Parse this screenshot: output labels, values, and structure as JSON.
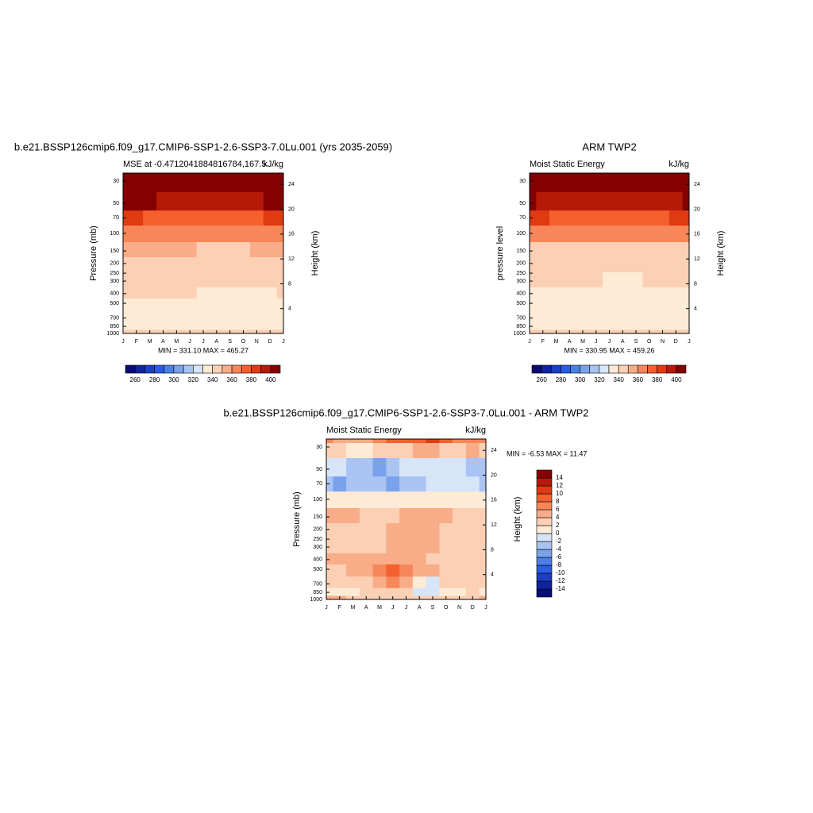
{
  "chart_data": [
    {
      "type": "contour",
      "title": "b.e21.BSSP126cmip6.f09_g17.CMIP6-SSP1-2.6-SSP3-7.0Lu.001 (yrs 2035-2059)",
      "subtitle_left": "MSE at -0.4712041884816784,167.5",
      "subtitle_right": "kJ/kg",
      "y_label": "Pressure (mb)",
      "y2_label": "Height (km)",
      "stats": "MIN = 331.10 MAX = 465.27",
      "categories": [
        "J",
        "F",
        "M",
        "A",
        "M",
        "J",
        "J",
        "A",
        "S",
        "O",
        "N",
        "D",
        "J"
      ],
      "y": [
        25,
        30,
        50,
        70,
        100,
        150,
        200,
        300,
        400,
        500,
        700,
        850,
        1000
      ],
      "values": [
        [
          462,
          462,
          463,
          464,
          465,
          465,
          465,
          465,
          464,
          463,
          462,
          462,
          462
        ],
        [
          440,
          440,
          440,
          440,
          441,
          441,
          441,
          441,
          440,
          440,
          440,
          440,
          440
        ],
        [
          402,
          401,
          400,
          398,
          396,
          395,
          395,
          395,
          396,
          397,
          399,
          401,
          402
        ],
        [
          380,
          380,
          379,
          378,
          377,
          376,
          376,
          376,
          377,
          378,
          379,
          380,
          380
        ],
        [
          362,
          362,
          362,
          361,
          361,
          361,
          361,
          361,
          361,
          361,
          362,
          362,
          362
        ],
        [
          352,
          352,
          351,
          351,
          350,
          350,
          349,
          349,
          349,
          349,
          350,
          351,
          352
        ],
        [
          345,
          345,
          345,
          345,
          345,
          345,
          345,
          345,
          345,
          345,
          345,
          345,
          345
        ],
        [
          343,
          343,
          343,
          343,
          343,
          343,
          343,
          343,
          342,
          342,
          342,
          343,
          343
        ],
        [
          342,
          342,
          342,
          341,
          341,
          341,
          339,
          338,
          338,
          338,
          338,
          339,
          341
        ],
        [
          338,
          338,
          338,
          338,
          338,
          338,
          337,
          336,
          336,
          336,
          336,
          337,
          338
        ],
        [
          336,
          336,
          336,
          336,
          335,
          335,
          336,
          336,
          336,
          336,
          336,
          336,
          336
        ],
        [
          333,
          333,
          333,
          333,
          333,
          333,
          333,
          333,
          333,
          333,
          333,
          333,
          333
        ],
        [
          341,
          341,
          341,
          341,
          341,
          341,
          341,
          341,
          341,
          341,
          341,
          341,
          341
        ]
      ],
      "ylim": [
        1000,
        25
      ],
      "log_y": true,
      "yticks": [
        30,
        50,
        70,
        100,
        150,
        200,
        250,
        300,
        400,
        500,
        700,
        850,
        1000
      ],
      "y2ticks": [
        4,
        8,
        12,
        16,
        20,
        24
      ],
      "contour_levels": [
        260,
        270,
        280,
        290,
        300,
        310,
        320,
        330,
        340,
        350,
        360,
        370,
        380,
        390,
        400
      ],
      "colors": [
        "#0a0a78",
        "#10239e",
        "#1a3fc4",
        "#2a5ee0",
        "#4a7fe6",
        "#7aa2ec",
        "#a9c3f2",
        "#d6e5f8",
        "#fdebd6",
        "#fcd0b4",
        "#f9ac88",
        "#f78658",
        "#f4602e",
        "#e03a12",
        "#b51a08",
        "#850000"
      ],
      "colorbar": "horizontal",
      "colorbar_ticks": [
        260,
        280,
        300,
        320,
        340,
        360,
        380,
        400
      ]
    },
    {
      "type": "contour",
      "title": "ARM TWP2",
      "subtitle_left": "Moist Static Energy",
      "subtitle_right": "kJ/kg",
      "y_label": "pressure level",
      "y2_label": "Height (km)",
      "stats": "MIN = 330.95 MAX = 459.26",
      "categories": [
        "J",
        "F",
        "M",
        "A",
        "M",
        "J",
        "J",
        "A",
        "S",
        "O",
        "N",
        "D",
        "J"
      ],
      "y": [
        25,
        30,
        50,
        70,
        100,
        150,
        200,
        300,
        400,
        500,
        700,
        850,
        1000
      ],
      "values": [
        [
          455,
          455,
          456,
          457,
          458,
          459,
          459,
          459,
          458,
          457,
          456,
          455,
          455
        ],
        [
          440,
          440,
          440,
          440,
          440,
          440,
          440,
          440,
          440,
          440,
          440,
          440,
          440
        ],
        [
          400,
          399,
          398,
          396,
          394,
          393,
          393,
          393,
          394,
          396,
          398,
          399,
          400
        ],
        [
          380,
          380,
          379,
          378,
          377,
          376,
          376,
          376,
          377,
          378,
          379,
          380,
          380
        ],
        [
          361,
          361,
          361,
          361,
          361,
          361,
          361,
          361,
          361,
          361,
          361,
          361,
          361
        ],
        [
          347,
          347,
          347,
          347,
          347,
          347,
          347,
          347,
          347,
          347,
          347,
          347,
          347
        ],
        [
          346,
          346,
          346,
          346,
          346,
          346,
          346,
          346,
          346,
          346,
          346,
          346,
          346
        ],
        [
          343,
          343,
          342,
          342,
          341,
          340,
          339,
          339,
          339,
          340,
          341,
          342,
          343
        ],
        [
          338,
          338,
          338,
          338,
          338,
          338,
          338,
          338,
          338,
          338,
          338,
          338,
          338
        ],
        [
          336,
          336,
          336,
          336,
          336,
          336,
          336,
          336,
          336,
          336,
          336,
          336,
          336
        ],
        [
          335,
          335,
          335,
          335,
          335,
          335,
          335,
          335,
          335,
          335,
          335,
          335,
          335
        ],
        [
          334,
          334,
          334,
          334,
          334,
          334,
          334,
          334,
          334,
          334,
          334,
          334,
          334
        ],
        [
          341,
          341,
          341,
          341,
          341,
          341,
          341,
          341,
          341,
          341,
          341,
          341,
          341
        ]
      ],
      "ylim": [
        1000,
        25
      ],
      "log_y": true,
      "yticks": [
        30,
        50,
        70,
        100,
        150,
        200,
        250,
        300,
        400,
        500,
        700,
        850,
        1000
      ],
      "y2ticks": [
        4,
        8,
        12,
        16,
        20,
        24
      ],
      "contour_levels": [
        260,
        270,
        280,
        290,
        300,
        310,
        320,
        330,
        340,
        350,
        360,
        370,
        380,
        390,
        400
      ],
      "colors": [
        "#0a0a78",
        "#10239e",
        "#1a3fc4",
        "#2a5ee0",
        "#4a7fe6",
        "#7aa2ec",
        "#a9c3f2",
        "#d6e5f8",
        "#fdebd6",
        "#fcd0b4",
        "#f9ac88",
        "#f78658",
        "#f4602e",
        "#e03a12",
        "#b51a08",
        "#850000"
      ],
      "colorbar": "horizontal",
      "colorbar_ticks": [
        260,
        280,
        300,
        320,
        340,
        360,
        380,
        400
      ]
    },
    {
      "type": "contour",
      "title": "b.e21.BSSP126cmip6.f09_g17.CMIP6-SSP1-2.6-SSP3-7.0Lu.001 - ARM TWP2",
      "subtitle_left": "Moist Static Energy",
      "subtitle_right": "kJ/kg",
      "y_label": "Pressure (mb)",
      "y2_label": "Height (km)",
      "stats": "MIN =  -6.53 MAX =  11.47",
      "categories": [
        "J",
        "F",
        "M",
        "A",
        "M",
        "J",
        "J",
        "A",
        "S",
        "O",
        "N",
        "D",
        "J"
      ],
      "y": [
        25,
        30,
        50,
        70,
        100,
        150,
        200,
        300,
        400,
        500,
        700,
        850,
        1000
      ],
      "values": [
        [
          6,
          5,
          4,
          5,
          7,
          8,
          8,
          9,
          11,
          8,
          6,
          7,
          6
        ],
        [
          3,
          2,
          1,
          1,
          2,
          3,
          3,
          4,
          5,
          3,
          3,
          4,
          3
        ],
        [
          -1,
          -2,
          -3,
          -4,
          -6,
          -3,
          -2,
          -1,
          -1,
          -1,
          -1,
          -3,
          -4
        ],
        [
          -3,
          -6,
          -4,
          -4,
          -4,
          -5,
          -4,
          -3,
          -2,
          -2,
          -2,
          -2,
          -3
        ],
        [
          1,
          1,
          1,
          1,
          1,
          1,
          1,
          1,
          1,
          1,
          1,
          1,
          1
        ],
        [
          4,
          4,
          4,
          3,
          2,
          3,
          4,
          4,
          4,
          4,
          3,
          2,
          2
        ],
        [
          3,
          3,
          3,
          2,
          2,
          4,
          4,
          4,
          4,
          3,
          2,
          2,
          2
        ],
        [
          2,
          2,
          3,
          3,
          3,
          4,
          4,
          4,
          4,
          3,
          3,
          3,
          3
        ],
        [
          4,
          4,
          4,
          4,
          5,
          5,
          4,
          4,
          3,
          3,
          2,
          2,
          2
        ],
        [
          3,
          3,
          4,
          4,
          6,
          9,
          7,
          5,
          4,
          3,
          3,
          3,
          3
        ],
        [
          2,
          2,
          3,
          3,
          4,
          6,
          5,
          0,
          -1,
          2,
          3,
          3,
          2
        ],
        [
          1,
          0,
          1,
          2,
          3,
          3,
          2,
          -1,
          -1,
          0,
          1,
          2,
          1
        ],
        [
          4,
          4,
          3,
          3,
          3,
          3,
          3,
          3,
          3,
          3,
          3,
          3,
          4
        ]
      ],
      "ylim": [
        1000,
        25
      ],
      "log_y": true,
      "yticks": [
        30,
        50,
        70,
        100,
        150,
        200,
        250,
        300,
        400,
        500,
        700,
        850,
        1000
      ],
      "y2ticks": [
        4,
        8,
        12,
        16,
        20,
        24
      ],
      "contour_levels": [
        -14,
        -12,
        -10,
        -8,
        -6,
        -4,
        -2,
        0,
        2,
        4,
        6,
        8,
        10,
        12,
        14
      ],
      "colors": [
        "#0a0a78",
        "#10239e",
        "#1a3fc4",
        "#2a5ee0",
        "#4a7fe6",
        "#7aa2ec",
        "#a9c3f2",
        "#d6e5f8",
        "#fdebd6",
        "#fcd0b4",
        "#f9ac88",
        "#f78658",
        "#f4602e",
        "#e03a12",
        "#b51a08",
        "#850000"
      ],
      "colorbar": "vertical",
      "colorbar_ticks": [
        -14,
        -12,
        -10,
        -8,
        -6,
        -4,
        -2,
        0,
        2,
        4,
        6,
        8,
        10,
        12,
        14
      ]
    }
  ]
}
